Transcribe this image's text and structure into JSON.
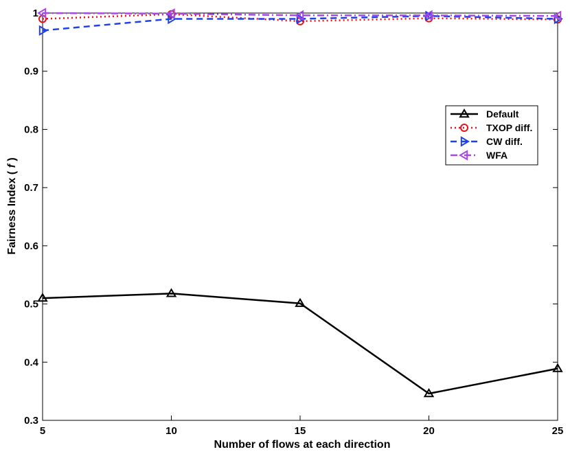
{
  "chart_data": {
    "type": "line",
    "xlabel": "Number of flows at each direction",
    "ylabel_main": "Fairness Index ( ",
    "ylabel_var": "f",
    "ylabel_end": " )",
    "xlim": [
      5,
      25
    ],
    "ylim": [
      0.3,
      1
    ],
    "xticks": [
      "5",
      "10",
      "15",
      "20",
      "25"
    ],
    "yticks": [
      "0.3",
      "0.4",
      "0.5",
      "0.6",
      "0.7",
      "0.8",
      "0.9",
      "1"
    ],
    "x": [
      5,
      10,
      15,
      20,
      25
    ],
    "grid": false,
    "legend_position": "upper-right",
    "series": [
      {
        "name": "Default",
        "values": [
          0.51,
          0.518,
          0.501,
          0.346,
          0.389
        ],
        "color": "#000000",
        "dash": "solid",
        "marker": "triangle-up"
      },
      {
        "name": "TXOP diff.",
        "values": [
          0.99,
          0.998,
          0.986,
          0.991,
          0.989
        ],
        "color": "#e8111a",
        "dash": "dotted",
        "marker": "circle"
      },
      {
        "name": "CW diff.",
        "values": [
          0.97,
          0.99,
          0.99,
          0.995,
          0.99
        ],
        "color": "#2040e8",
        "dash": "dashed",
        "marker": "triangle-right"
      },
      {
        "name": "WFA",
        "values": [
          1.0,
          0.999,
          0.996,
          0.996,
          0.995
        ],
        "color": "#a548e8",
        "dash": "dashdot",
        "marker": "triangle-left"
      }
    ]
  }
}
